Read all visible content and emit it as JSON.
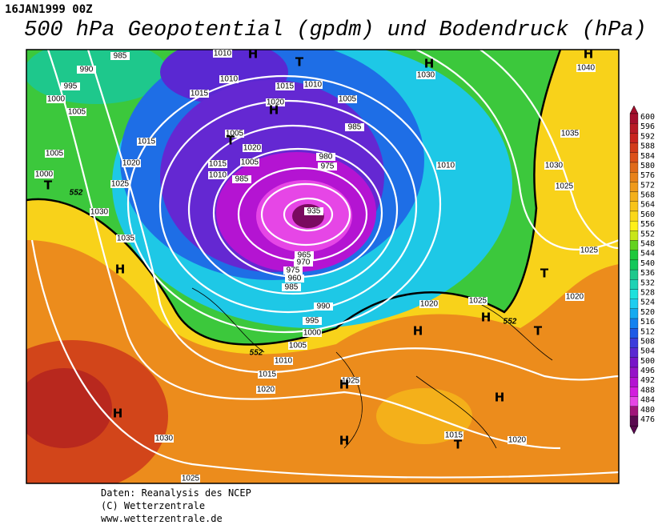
{
  "header": {
    "date": "16JAN1999 00Z",
    "title": "500 hPa Geopotential (gpdm) und Bodendruck (hPa)"
  },
  "legend": {
    "levels": [
      600,
      596,
      592,
      588,
      584,
      580,
      576,
      572,
      568,
      564,
      560,
      556,
      552,
      548,
      544,
      540,
      536,
      532,
      528,
      524,
      520,
      516,
      512,
      508,
      504,
      500,
      496,
      492,
      488,
      484,
      480,
      476
    ],
    "colors": [
      "#a50f2d",
      "#b81a26",
      "#c8231e",
      "#d23a1a",
      "#dc501a",
      "#e06a1a",
      "#e8821a",
      "#ef9a1a",
      "#f4b01a",
      "#f8c41a",
      "#fbd81a",
      "#fff01a",
      "#c8e61a",
      "#64d21e",
      "#1ec83c",
      "#14c85a",
      "#1ec88c",
      "#1ed2b4",
      "#1ee1dc",
      "#1ecdf0",
      "#14aaf0",
      "#1482f0",
      "#1e5ae6",
      "#3c3cdc",
      "#5a28d2",
      "#7814c8",
      "#9614c8",
      "#b414d2",
      "#d21ede",
      "#e646e6",
      "#a0147a",
      "#5a0a50"
    ]
  },
  "map": {
    "isobar_labels": [
      985,
      990,
      995,
      1000,
      1005,
      1005,
      1000,
      1015,
      1020,
      1025,
      1030,
      1035,
      1010,
      1010,
      1015,
      1015,
      1010,
      1020,
      1005,
      985,
      1005,
      1020,
      1015,
      1005,
      1010,
      985,
      980,
      975,
      965,
      970,
      975,
      960,
      985,
      990,
      995,
      1000,
      1005,
      1010,
      1015,
      1020,
      1030,
      1040,
      1035,
      1030,
      1010,
      1025,
      1025,
      1020,
      1020,
      1025,
      1025,
      1015,
      1020,
      1030,
      1025,
      935
    ],
    "contour_labels": [
      552,
      552,
      552
    ],
    "pressure_centers": [
      "H",
      "T",
      "H",
      "H",
      "H",
      "T",
      "T",
      "H",
      "H",
      "H",
      "T",
      "T",
      "H",
      "H",
      "H",
      "H",
      "T"
    ]
  },
  "footer": {
    "lines": [
      "Daten: Reanalysis des NCEP",
      "(C) Wetterzentrale",
      "www.wetterzentrale.de"
    ]
  }
}
